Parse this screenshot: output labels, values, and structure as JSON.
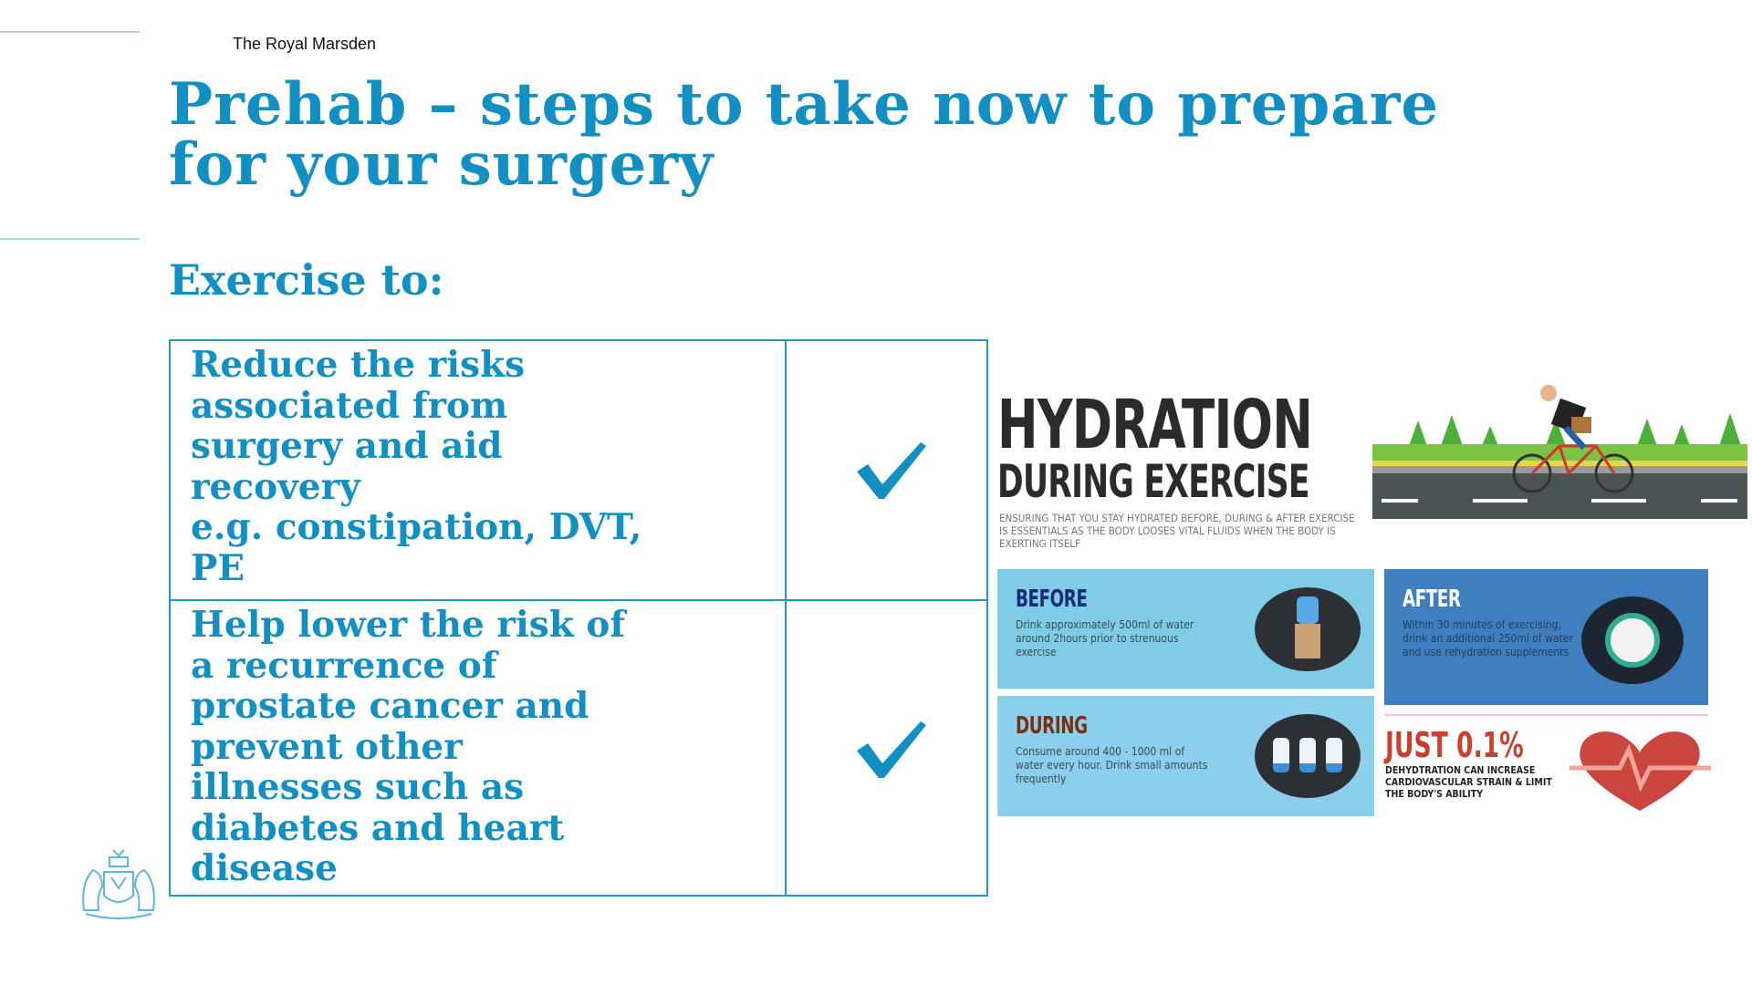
{
  "header": {
    "organization": "The Royal Marsden"
  },
  "slide": {
    "title_line1": "Prehab – steps to take now to prepare",
    "title_line2": "for your surgery",
    "subheading": "Exercise to:"
  },
  "table": {
    "rows": [
      {
        "text": "Reduce the risks\nassociated from\nsurgery and aid\nrecovery\ne.g. constipation, DVT,\nPE",
        "checked": true
      },
      {
        "text": "Help lower the risk of\na recurrence of\nprostate cancer and\nprevent other\nillnesses such as\ndiabetes and heart\ndisease",
        "checked": true
      }
    ]
  },
  "infographic": {
    "title": "HYDRATION",
    "subtitle": "DURING EXERCISE",
    "intro": "Ensuring that you stay hydrated before, during & after exercise is essentials as the body looses vital fluids when the body is exerting itself",
    "before": {
      "heading": "BEFORE",
      "text": "Drink approximately 500ml of water around 2hours prior to strenuous exercise"
    },
    "during": {
      "heading": "DURING",
      "text": "Consume around 400 - 1000 ml of water every hour. Drink small amounts frequently"
    },
    "after": {
      "heading": "AFTER",
      "text": "Within 30 minutes of exercising, drink an additional 250ml of water and use rehydration supplements"
    },
    "stat": {
      "heading": "JUST 0.1%",
      "text": "DEHYDTRATION CAN INCREASE CARDIOVASCULAR STRAIN & LIMIT THE BODY'S ABILITY"
    }
  },
  "colors": {
    "accent": "#1290c3",
    "before_bg": "#7fcce6",
    "during_bg": "#8ccfec",
    "after_bg": "#3f7fc0",
    "stat_red": "#c8412f"
  }
}
